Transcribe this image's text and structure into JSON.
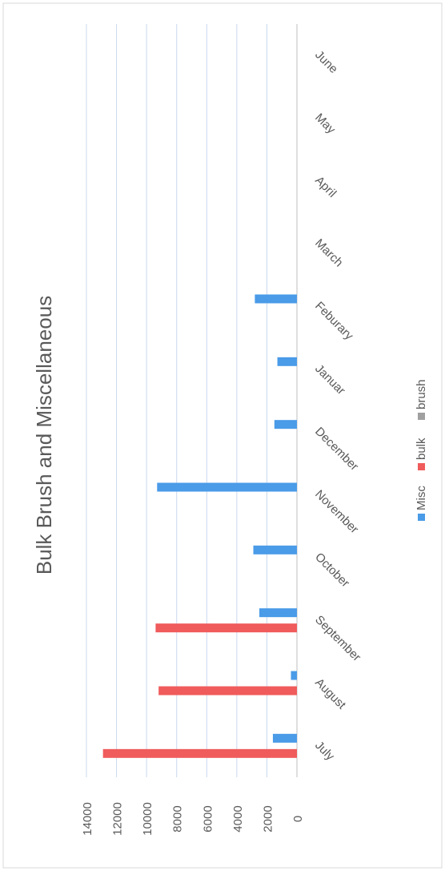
{
  "chart_data": {
    "type": "bar",
    "title": "Bulk Brush and Miscellaneous",
    "categories": [
      "July",
      "August",
      "September",
      "October",
      "November",
      "December",
      "Januar",
      "Feburary",
      "March",
      "April",
      "May",
      "June"
    ],
    "series": [
      {
        "name": "Misc",
        "color": "#4a9be8",
        "values": [
          1600,
          400,
          2500,
          2900,
          9300,
          1500,
          1300,
          2800,
          0,
          0,
          0,
          0
        ]
      },
      {
        "name": "bulk",
        "color": "#f05b5b",
        "values": [
          12900,
          9200,
          9400,
          0,
          0,
          0,
          0,
          0,
          0,
          0,
          0,
          0
        ]
      },
      {
        "name": "brush",
        "color": "#a0a0a0",
        "values": [
          0,
          0,
          0,
          0,
          0,
          0,
          0,
          0,
          0,
          0,
          0,
          0
        ]
      }
    ],
    "ylim": [
      0,
      14000
    ],
    "yticks": [
      "0",
      "2000",
      "4000",
      "6000",
      "8000",
      "10000",
      "12000",
      "14000"
    ],
    "grid": true,
    "legend": "bottom",
    "orientation": "rotated-90-clockwise"
  }
}
